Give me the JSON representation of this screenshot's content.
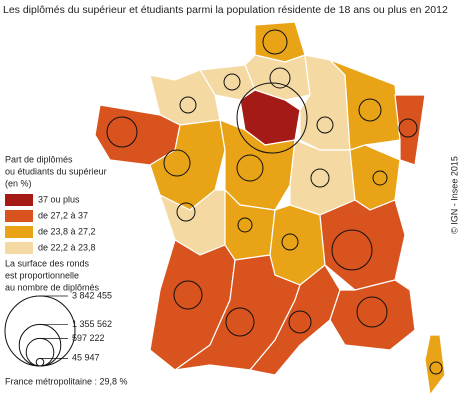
{
  "title": "Les diplômés du supérieur et étudiants parmi la population résidente de 18 ans ou plus en 2012",
  "credit": "© IGN - Insee 2015",
  "legend": {
    "title": [
      "Part de diplômés",
      "ou étudiants du supérieur",
      "(en %)"
    ],
    "classes": [
      {
        "label": "37 ou plus",
        "color": "#a31a17"
      },
      {
        "label": "de 27,2 à 37",
        "color": "#d9531e"
      },
      {
        "label": "de 23,8 à 27,2",
        "color": "#e8a317"
      },
      {
        "label": "de 22,2 à 23,8",
        "color": "#f5d9a3"
      }
    ],
    "size_title": [
      "La surface des ronds",
      "est proportionnelle",
      "au nombre de diplômés"
    ],
    "sizes": [
      {
        "value": 3842455,
        "label": "3 842 455"
      },
      {
        "value": 1355562,
        "label": "1 355 562"
      },
      {
        "value": 597222,
        "label": "597 222"
      },
      {
        "value": 45947,
        "label": "45 947"
      }
    ]
  },
  "total": "France métropolitaine : 29,8 %",
  "regions": [
    {
      "class": 2,
      "size": 452000
    },
    {
      "class": 3,
      "size": 314000
    },
    {
      "class": 3,
      "size": 200000
    },
    {
      "class": 3,
      "size": 200000
    },
    {
      "class": 0,
      "size": 3842455
    },
    {
      "class": 3,
      "size": 200000
    },
    {
      "class": 2,
      "size": 380000
    },
    {
      "class": 1,
      "size": 254000
    },
    {
      "class": 1,
      "size": 705000
    },
    {
      "class": 2,
      "size": 530000
    },
    {
      "class": 2,
      "size": 530000
    },
    {
      "class": 3,
      "size": 254000
    },
    {
      "class": 2,
      "size": 154000
    },
    {
      "class": 3,
      "size": 254000
    },
    {
      "class": 2,
      "size": 154000
    },
    {
      "class": 2,
      "size": 200000
    },
    {
      "class": 1,
      "size": 1255000
    },
    {
      "class": 1,
      "size": 615000
    },
    {
      "class": 1,
      "size": 615000
    },
    {
      "class": 1,
      "size": 380000
    },
    {
      "class": 1,
      "size": 705000
    },
    {
      "class": 2,
      "size": 113000
    }
  ]
}
